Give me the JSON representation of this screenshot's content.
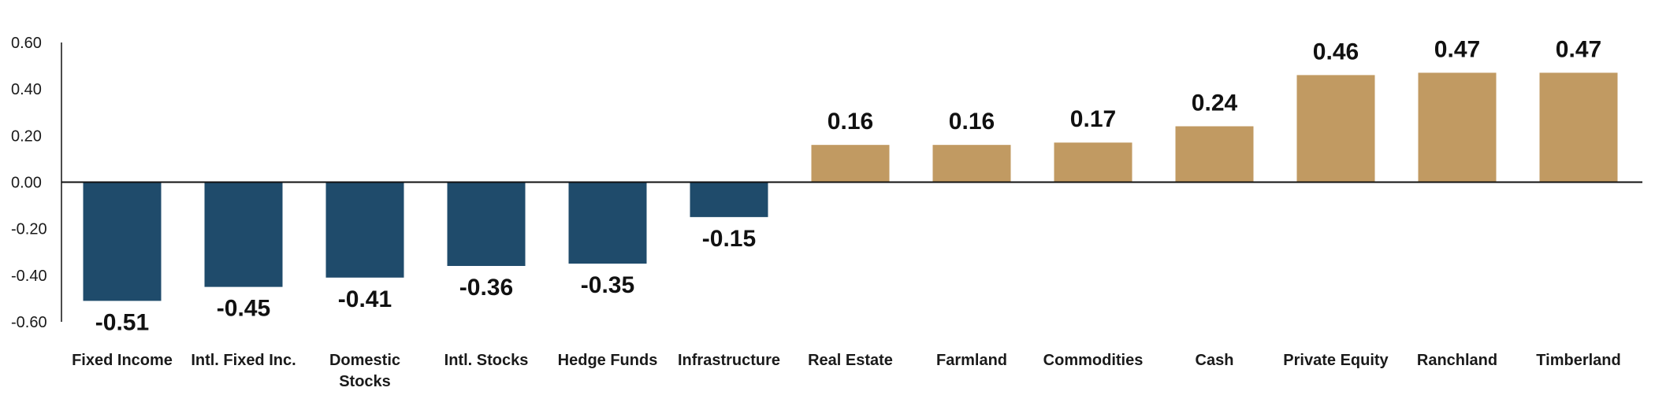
{
  "chart_data": {
    "type": "bar",
    "title": "",
    "xlabel": "",
    "ylabel": "",
    "ylim": [
      -0.6,
      0.6
    ],
    "yticks": [
      "0.60",
      "0.40",
      "0.20",
      "0.00",
      "-0.20",
      "-0.40",
      "-0.60"
    ],
    "ytick_values": [
      0.6,
      0.4,
      0.2,
      0.0,
      -0.2,
      -0.4,
      -0.6
    ],
    "grid": false,
    "legend": "none",
    "colors": {
      "negative": "#1F4B6B",
      "positive": "#C19A62",
      "axis": "#111111"
    },
    "categories": [
      "Fixed Income",
      "Intl. Fixed Inc.",
      "Domestic Stocks",
      "Intl. Stocks",
      "Hedge Funds",
      "Infrastructure",
      "Real Estate",
      "Farmland",
      "Commodities",
      "Cash",
      "Private Equity",
      "Ranchland",
      "Timberland"
    ],
    "category_lines": [
      [
        "Fixed Income"
      ],
      [
        "Intl. Fixed Inc."
      ],
      [
        "Domestic",
        "Stocks"
      ],
      [
        "Intl. Stocks"
      ],
      [
        "Hedge Funds"
      ],
      [
        "Infrastructure"
      ],
      [
        "Real Estate"
      ],
      [
        "Farmland"
      ],
      [
        "Commodities"
      ],
      [
        "Cash"
      ],
      [
        "Private Equity"
      ],
      [
        "Ranchland"
      ],
      [
        "Timberland"
      ]
    ],
    "values": [
      -0.51,
      -0.45,
      -0.41,
      -0.36,
      -0.35,
      -0.15,
      0.16,
      0.16,
      0.17,
      0.24,
      0.46,
      0.47,
      0.47
    ],
    "data_labels": [
      "-0.51",
      "-0.45",
      "-0.41",
      "-0.36",
      "-0.35",
      "-0.15",
      "0.16",
      "0.16",
      "0.17",
      "0.24",
      "0.46",
      "0.47",
      "0.47"
    ]
  }
}
